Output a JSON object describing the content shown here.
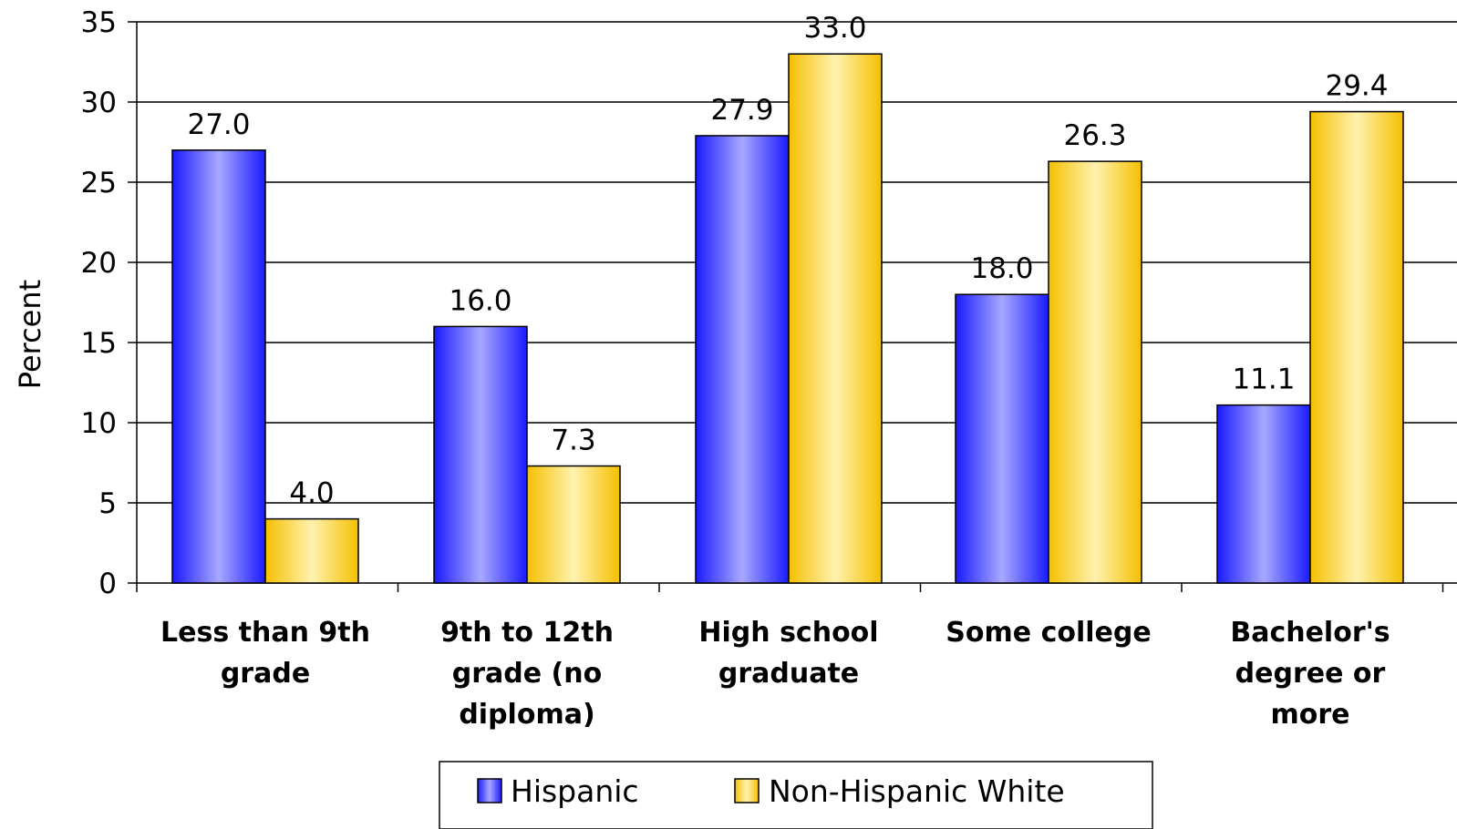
{
  "chart_data": {
    "type": "bar",
    "title": "",
    "xlabel": "",
    "ylabel": "Percent",
    "ylim": [
      0,
      35
    ],
    "yticks": [
      0,
      5,
      10,
      15,
      20,
      25,
      30,
      35
    ],
    "grid": true,
    "legend_position": "bottom",
    "categories": [
      [
        "Less than 9th",
        "grade"
      ],
      [
        "9th to 12th",
        "grade (no",
        "diploma)"
      ],
      [
        "High school",
        "graduate"
      ],
      [
        "Some college"
      ],
      [
        "Bachelor's",
        "degree or",
        "more"
      ]
    ],
    "series": [
      {
        "name": "Hispanic",
        "values": [
          27.0,
          16.0,
          27.9,
          18.0,
          11.1
        ],
        "labels": [
          "27.0",
          "16.0",
          "27.9",
          "18.0",
          "11.1"
        ],
        "color_dark": "#1a1aff",
        "color_light": "#a8a8ff"
      },
      {
        "name": "Non-Hispanic White",
        "values": [
          4.0,
          7.3,
          33.0,
          26.3,
          29.4
        ],
        "labels": [
          "4.0",
          "7.3",
          "33.0",
          "26.3",
          "29.4"
        ],
        "color_dark": "#f5c000",
        "color_light": "#fff2b0"
      }
    ]
  }
}
